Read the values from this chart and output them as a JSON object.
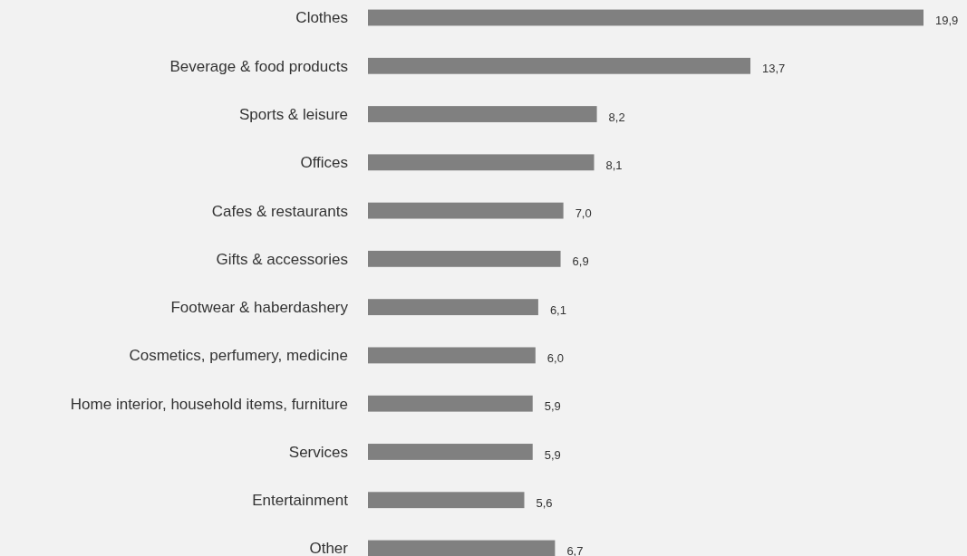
{
  "chart_data": {
    "type": "bar",
    "orientation": "horizontal",
    "categories": [
      "Clothes",
      "Beverage & food products",
      "Sports & leisure",
      "Offices",
      "Cafes & restaurants",
      "Gifts & accessories",
      "Footwear & haberdashery",
      "Cosmetics, perfumery, medicine",
      "Home interior, household items, furniture",
      "Services",
      "Entertainment",
      "Other"
    ],
    "values": [
      19.9,
      13.7,
      8.2,
      8.1,
      7.0,
      6.9,
      6.1,
      6.0,
      5.9,
      5.9,
      5.6,
      6.7
    ],
    "value_labels": [
      "19,9",
      "13,7",
      "8,2",
      "8,1",
      "7,0",
      "6,9",
      "6,1",
      "6,0",
      "5,9",
      "5,9",
      "5,6",
      "6,7"
    ],
    "color": "#808080"
  }
}
